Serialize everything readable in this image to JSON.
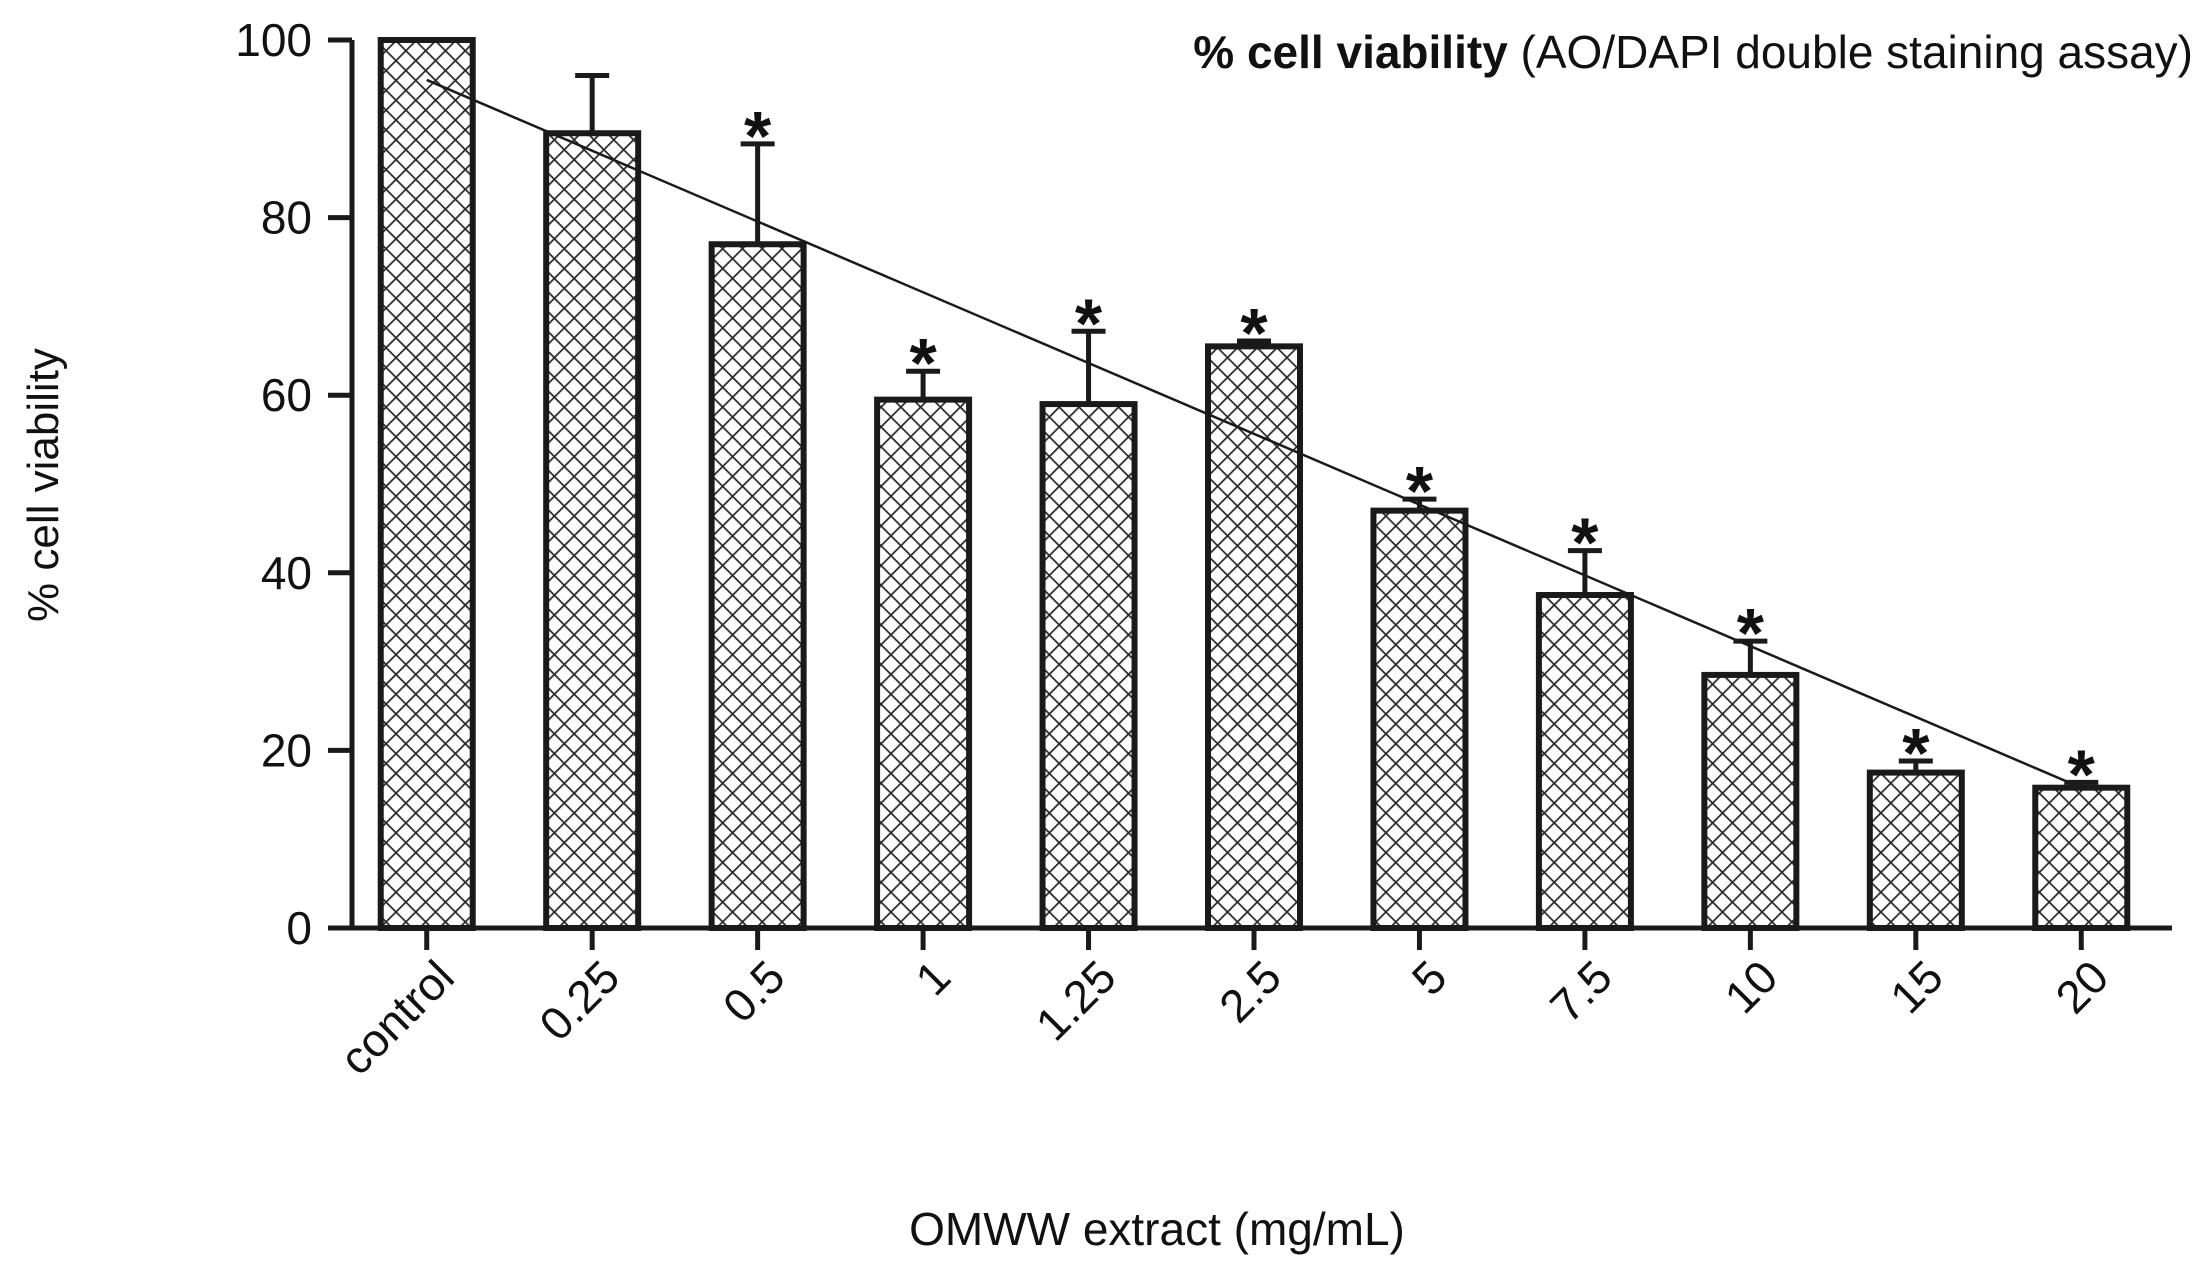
{
  "chart_data": {
    "type": "bar",
    "title_bold": "% cell viability",
    "title_rest": " (AO/DAPI double staining assay)",
    "xlabel": "OMWW extract (mg/mL)",
    "ylabel": "% cell viability",
    "ylim": [
      0,
      100
    ],
    "yticks": [
      "0",
      "20",
      "40",
      "60",
      "80",
      "100"
    ],
    "categories": [
      "control",
      "0.25",
      "0.5",
      "1",
      "1.25",
      "2.5",
      "5",
      "7.5",
      "10",
      "15",
      "20"
    ],
    "values": [
      100,
      89.5,
      77,
      59.5,
      59,
      65.5,
      47,
      37.5,
      28.5,
      17.5,
      15.8
    ],
    "errors": [
      0,
      6.5,
      11.3,
      3.2,
      8.2,
      0.6,
      1.3,
      5.0,
      3.8,
      1.3,
      0.6
    ],
    "significance": [
      "",
      "",
      "*",
      "*",
      "*",
      "*",
      "*",
      "*",
      "*",
      "*",
      "*"
    ],
    "trendline": {
      "start": 95.5,
      "end": 15.8
    },
    "bar_fill": "crosshatch",
    "colors": {
      "stroke": "#1a1a1a",
      "hatch": "#2a2a2a",
      "background": "#ffffff"
    }
  }
}
